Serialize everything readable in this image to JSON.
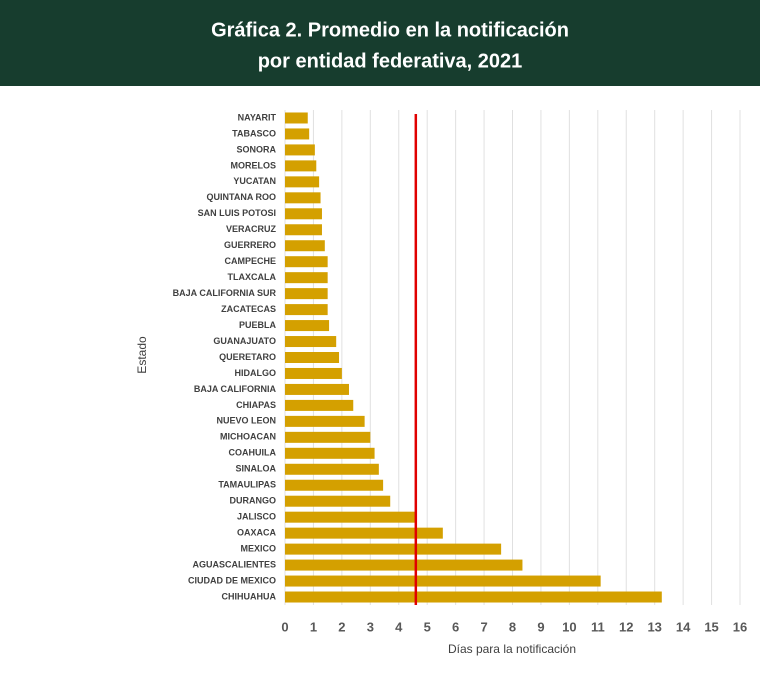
{
  "chart_data": {
    "type": "bar",
    "orientation": "horizontal",
    "title": "Gráfica 2. Promedio en la notificación",
    "subtitle": "por entidad federativa, 2021",
    "x_label": "Días para la notificación",
    "y_label": "Estado",
    "categories": [
      "NAYARIT",
      "TABASCO",
      "SONORA",
      "MORELOS",
      "YUCATAN",
      "QUINTANA ROO",
      "SAN  LUIS POTOSI",
      "VERACRUZ",
      "GUERRERO",
      "CAMPECHE",
      "TLAXCALA",
      "BAJA CALIFORNIA SUR",
      "ZACATECAS",
      "PUEBLA",
      "GUANAJUATO",
      "QUERETARO",
      "HIDALGO",
      "BAJA CALIFORNIA",
      "CHIAPAS",
      "NUEVO LEON",
      "MICHOACAN",
      "COAHUILA",
      "SINALOA",
      "TAMAULIPAS",
      "DURANGO",
      "JALISCO",
      "OAXACA",
      "MEXICO",
      "AGUASCALIENTES",
      "CIUDAD DE MEXICO",
      "CHIHUAHUA"
    ],
    "values": [
      0.8,
      0.85,
      1.05,
      1.1,
      1.2,
      1.25,
      1.3,
      1.3,
      1.4,
      1.5,
      1.5,
      1.5,
      1.5,
      1.55,
      1.8,
      1.9,
      2.0,
      2.25,
      2.4,
      2.8,
      3.0,
      3.15,
      3.3,
      3.45,
      3.7,
      4.6,
      5.55,
      7.6,
      8.35,
      11.1,
      13.25
    ],
    "color": "#d4a000",
    "reference_line": 4.6,
    "reference_color": "#e00000",
    "xlim": [
      0,
      16
    ],
    "xticks": [
      0,
      1,
      2,
      3,
      4,
      5,
      6,
      7,
      8,
      9,
      10,
      11,
      12,
      13,
      14,
      15,
      16
    ],
    "grid": true
  }
}
